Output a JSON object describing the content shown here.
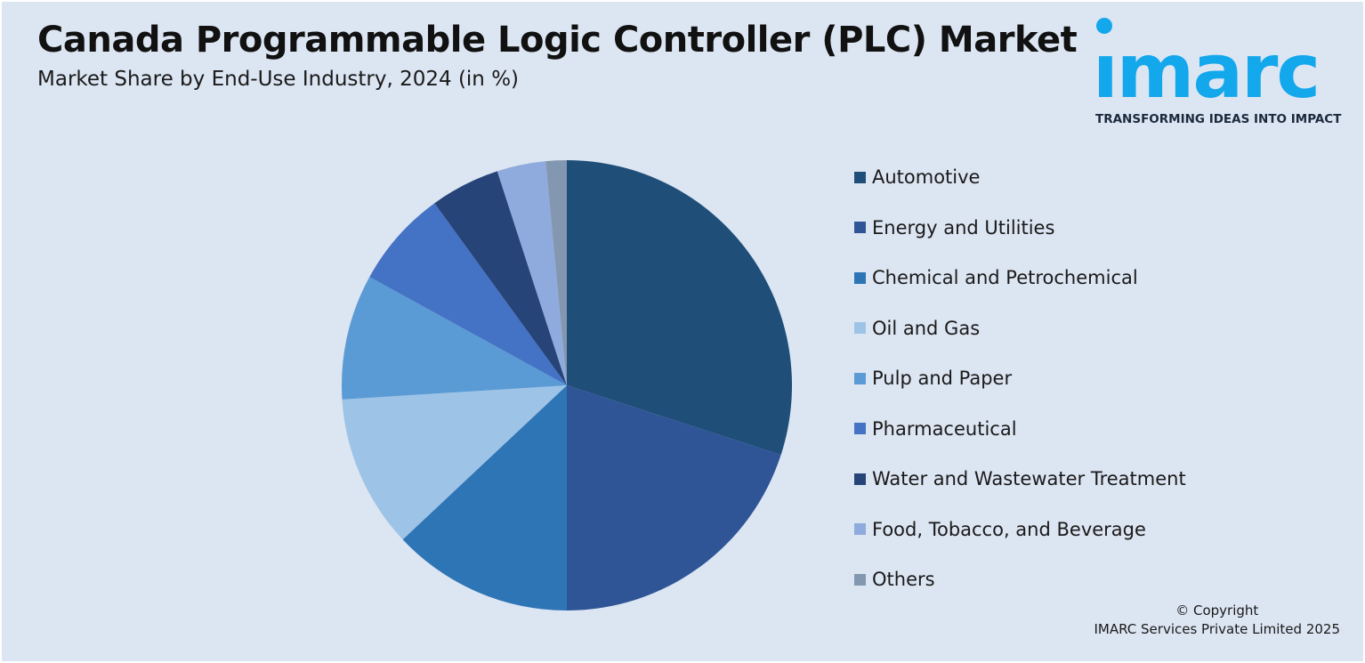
{
  "header": {
    "title": "Canada Programmable Logic Controller (PLC) Market",
    "subtitle": "Market Share by End-Use Industry, 2024 (in %)"
  },
  "logo": {
    "word": "ımarc",
    "tagline": "TRANSFORMING IDEAS INTO IMPACT",
    "color": "#13a7ec"
  },
  "chart_data": {
    "type": "pie",
    "title": "Canada Programmable Logic Controller (PLC) Market",
    "subtitle": "Market Share by End-Use Industry, 2024 (in %)",
    "legend_position": "right",
    "slices": [
      {
        "label": "Automotive",
        "value": 30,
        "color": "#1f4e79"
      },
      {
        "label": "Energy and Utilities",
        "value": 20,
        "color": "#2f5597"
      },
      {
        "label": "Chemical and Petrochemical",
        "value": 13,
        "color": "#2e75b6"
      },
      {
        "label": "Oil and Gas",
        "value": 11,
        "color": "#9dc3e6"
      },
      {
        "label": "Pulp and Paper",
        "value": 9,
        "color": "#5b9bd5"
      },
      {
        "label": "Pharmaceutical",
        "value": 7,
        "color": "#4472c4"
      },
      {
        "label": "Water and Wastewater Treatment",
        "value": 5,
        "color": "#264478"
      },
      {
        "label": "Food, Tobacco, and Beverage",
        "value": 3.5,
        "color": "#8faadc"
      },
      {
        "label": "Others",
        "value": 1.5,
        "color": "#8497b0"
      }
    ]
  },
  "footer": {
    "copyright_line1": "© Copyright",
    "copyright_line2": "IMARC Services Private Limited 2025"
  }
}
